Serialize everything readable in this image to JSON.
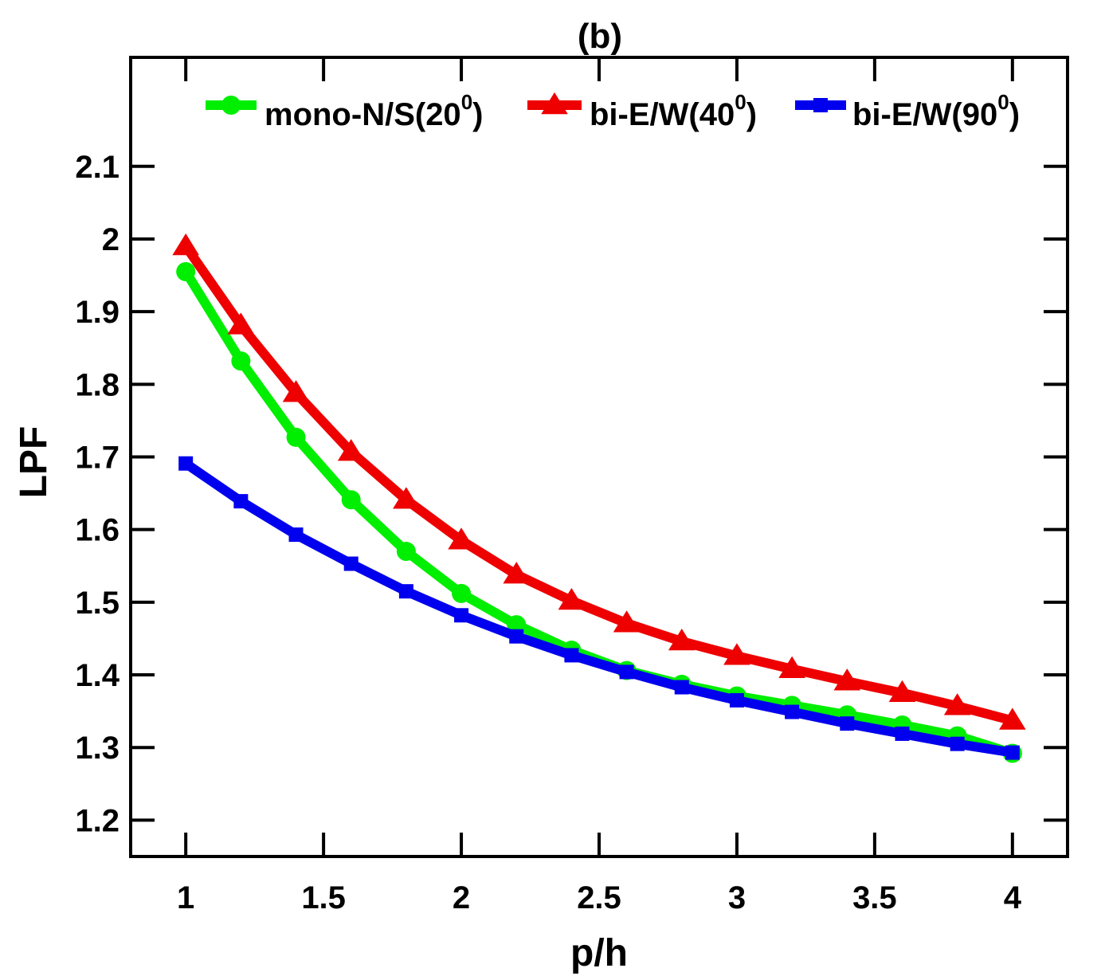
{
  "chart_data": {
    "type": "line",
    "title": "(b)",
    "xlabel": "p/h",
    "ylabel": "LPF",
    "xlim": [
      0.8,
      4.2
    ],
    "ylim": [
      1.15,
      2.25
    ],
    "xticks": [
      1,
      1.5,
      2,
      2.5,
      3,
      3.5,
      4
    ],
    "xtick_labels": [
      "1",
      "1.5",
      "2",
      "2.5",
      "3",
      "3.5",
      "4"
    ],
    "yticks": [
      1.2,
      1.3,
      1.4,
      1.5,
      1.6,
      1.7,
      1.8,
      1.9,
      2,
      2.1
    ],
    "ytick_labels": [
      "1.2",
      "1.3",
      "1.4",
      "1.5",
      "1.6",
      "1.7",
      "1.8",
      "1.9",
      "2",
      "2.1"
    ],
    "grid": false,
    "legend_position": "top",
    "x": [
      1,
      1.2,
      1.4,
      1.6,
      1.8,
      2,
      2.2,
      2.4,
      2.6,
      2.8,
      3,
      3.2,
      3.4,
      3.6,
      3.8,
      4
    ],
    "series": [
      {
        "name": "mono-N/S(20",
        "name_sup": "0",
        "name_suffix": ")",
        "color": "#00ee00",
        "marker": "circle",
        "values": [
          1.955,
          1.832,
          1.727,
          1.641,
          1.57,
          1.512,
          1.469,
          1.434,
          1.406,
          1.387,
          1.371,
          1.358,
          1.345,
          1.331,
          1.316,
          1.292
        ]
      },
      {
        "name": "bi-E/W(40",
        "name_sup": "0",
        "name_suffix": ")",
        "color": "#ee0000",
        "marker": "triangle",
        "values": [
          1.99,
          1.881,
          1.788,
          1.707,
          1.641,
          1.585,
          1.538,
          1.502,
          1.471,
          1.446,
          1.426,
          1.408,
          1.391,
          1.375,
          1.357,
          1.337
        ]
      },
      {
        "name": "bi-E/W(90",
        "name_sup": "0",
        "name_suffix": ")",
        "color": "#0000ee",
        "marker": "square",
        "values": [
          1.691,
          1.639,
          1.593,
          1.553,
          1.515,
          1.482,
          1.453,
          1.427,
          1.404,
          1.383,
          1.365,
          1.349,
          1.333,
          1.319,
          1.305,
          1.293
        ]
      }
    ]
  }
}
